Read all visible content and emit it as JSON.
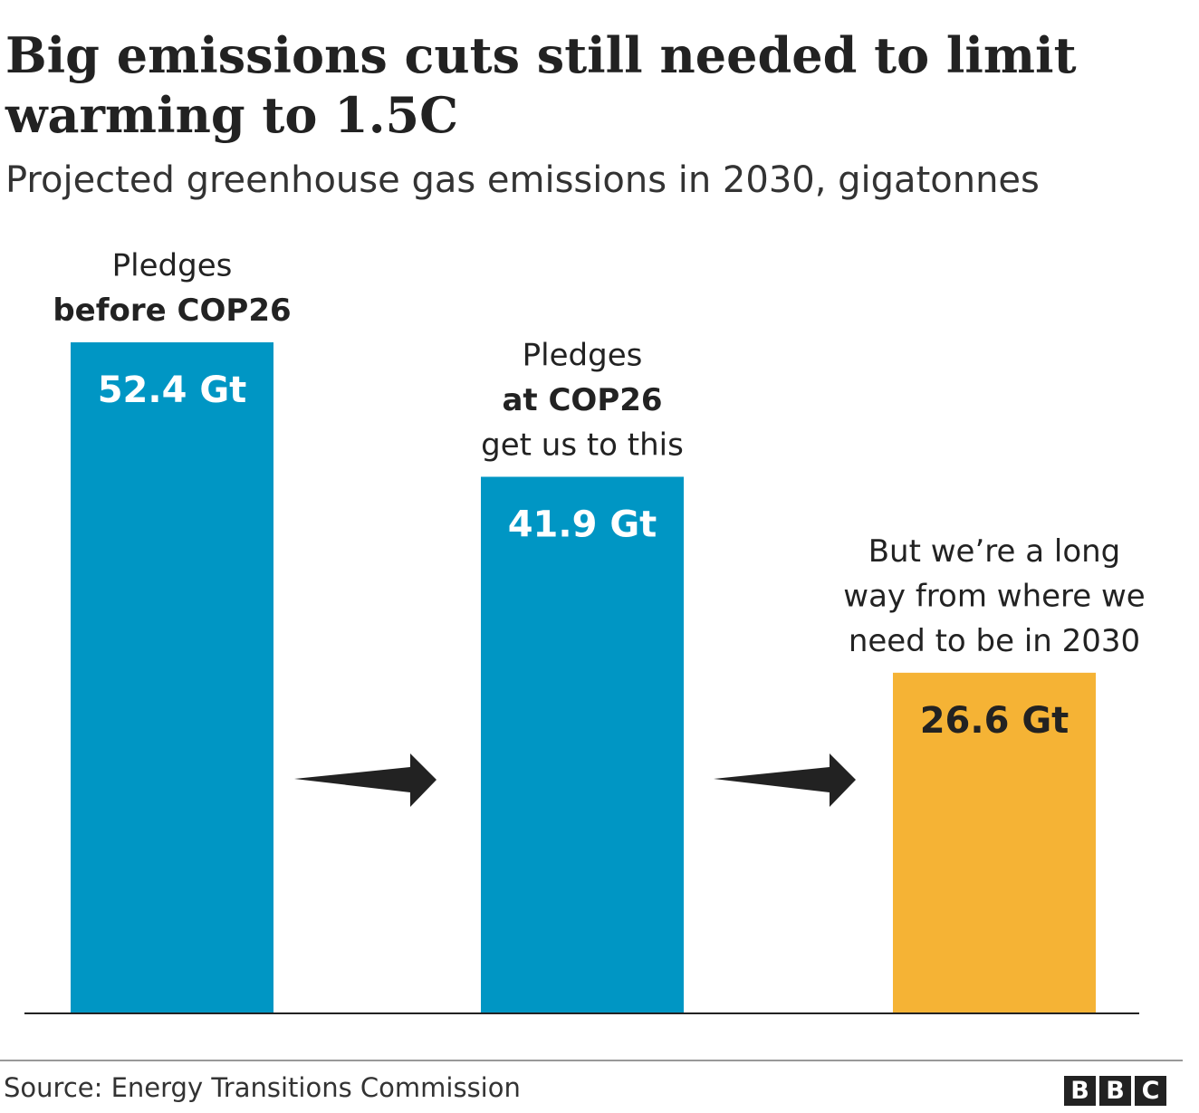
{
  "chart_data": {
    "type": "bar",
    "title": "Big emissions cuts still needed to limit warming to 1.5C",
    "subtitle": "Projected greenhouse gas emissions in 2030, gigatonnes",
    "categories": [
      "Pledges before COP26",
      "Pledges at COP26 get us to this",
      "But we're a long way from where we need to be in 2030"
    ],
    "values": [
      52.4,
      41.9,
      26.6
    ],
    "unit": "Gt",
    "data_labels": [
      "52.4 Gt",
      "41.9 Gt",
      "26.6 Gt"
    ],
    "annotations": [
      {
        "lines": [
          {
            "text": "Pledges",
            "bold": false
          },
          {
            "text": "before COP26",
            "bold": true
          }
        ]
      },
      {
        "lines": [
          {
            "text": "Pledges",
            "bold": false
          },
          {
            "text": "at COP26",
            "bold": true
          },
          {
            "text": "get us to this",
            "bold": false
          }
        ]
      },
      {
        "lines": [
          {
            "text": "But we’re a long",
            "bold": false
          },
          {
            "text": "way from where we",
            "bold": false
          },
          {
            "text": "need to be in 2030",
            "bold": false
          }
        ]
      }
    ],
    "colors": [
      "#0096c4",
      "#0096c4",
      "#f5b335"
    ],
    "label_colors": [
      "#ffffff",
      "#ffffff",
      "#222222"
    ],
    "ylim": [
      0,
      52.4
    ],
    "grid": false,
    "arrows_between_bars": true
  },
  "footer": {
    "source": "Source: Energy Transitions Commission",
    "logo": "BBC"
  }
}
